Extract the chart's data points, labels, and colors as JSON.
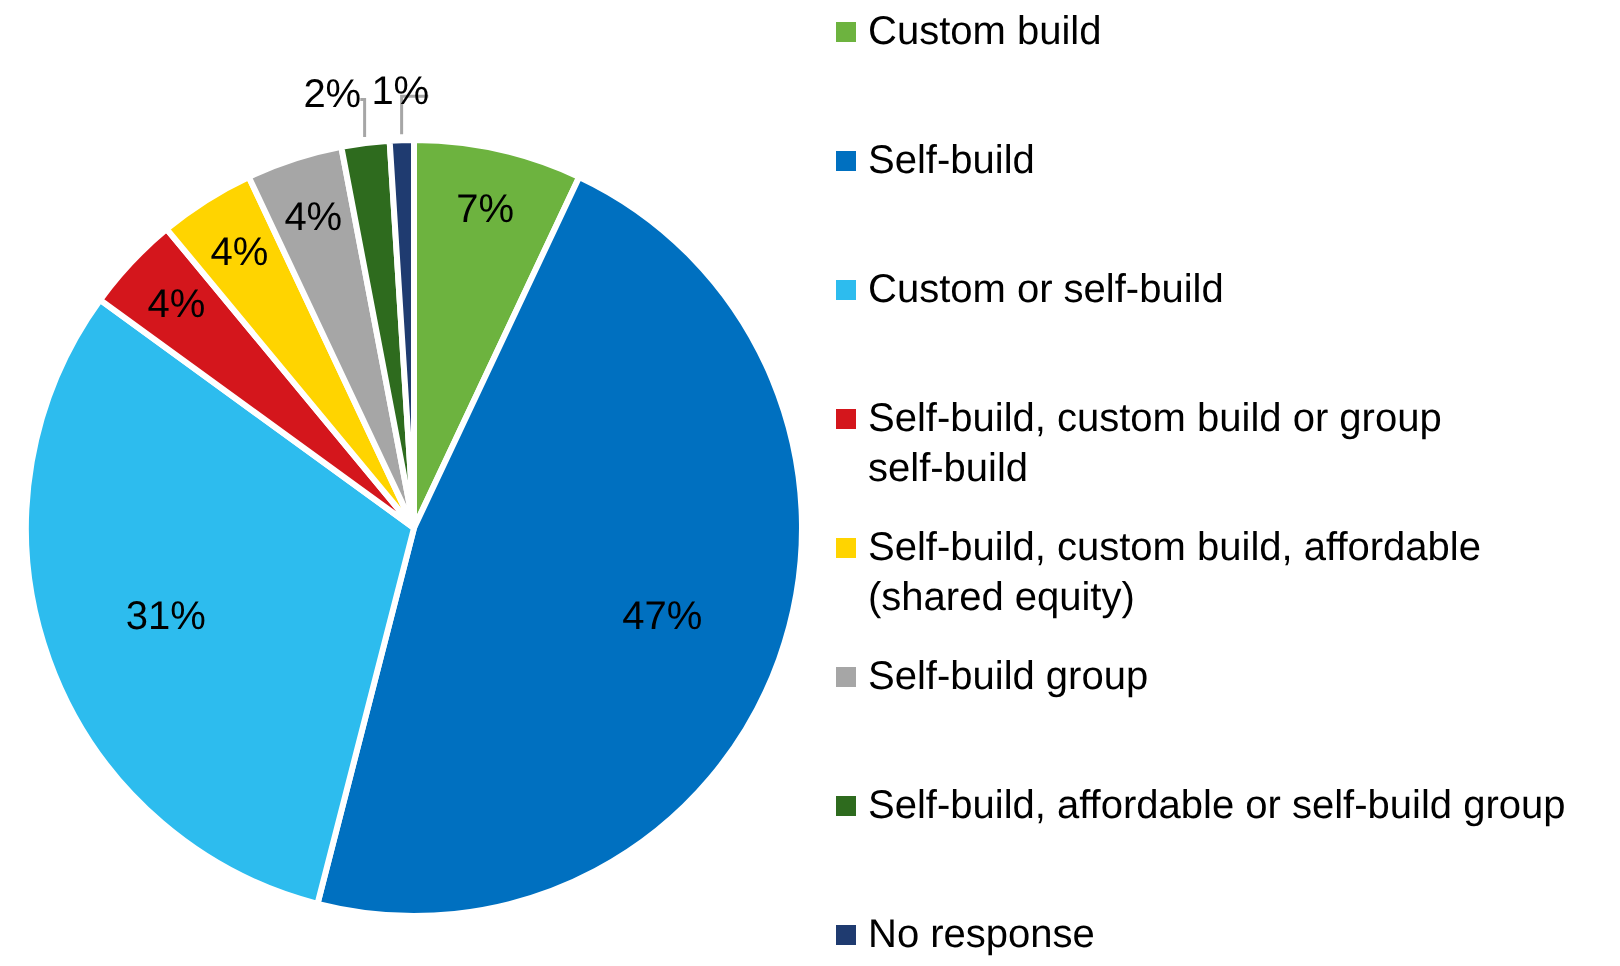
{
  "chart_data": {
    "type": "pie",
    "categories": [
      "Custom build",
      "Self-build",
      "Custom or self-build",
      "Self-build, custom build or group self-build",
      "Self-build, custom build, affordable (shared equity)",
      "Self-build group",
      "Self-build, affordable or self-build group",
      "No response"
    ],
    "values": [
      7,
      47,
      31,
      4,
      4,
      4,
      2,
      1
    ],
    "colors": [
      "#6db33f",
      "#0070c0",
      "#2dbcee",
      "#d4161c",
      "#ffd400",
      "#a6a6a6",
      "#2e6b1e",
      "#1f3b70"
    ],
    "value_labels": [
      "7%",
      "47%",
      "31%",
      "4%",
      "4%",
      "4%",
      "2%",
      "1%"
    ],
    "legend": "right"
  }
}
